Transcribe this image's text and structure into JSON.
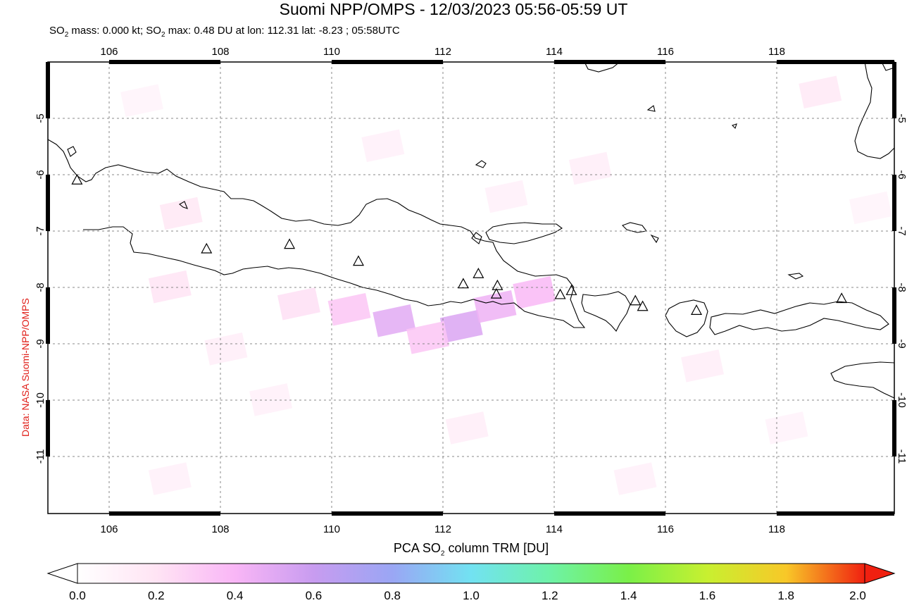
{
  "title": "Suomi NPP/OMPS - 12/03/2023 05:56-05:59 UT",
  "subtitle": {
    "prefix": "SO",
    "sub": "2",
    "mid": " mass: 0.000 kt; SO",
    "sub2": "2",
    "rest": " max: 0.48 DU at lon: 112.31 lat: -8.23 ; 05:58UTC"
  },
  "credit": "Data: NASA Suomi-NPP/OMPS",
  "map": {
    "lon_range": [
      104.9,
      120.0
    ],
    "lat_range": [
      -12.0,
      -4.0
    ],
    "x_ticks": [
      "106",
      "108",
      "110",
      "112",
      "114",
      "116",
      "118"
    ],
    "y_ticks": [
      "-5",
      "-6",
      "-7",
      "-8",
      "-9",
      "-10",
      "-11"
    ],
    "volcanoes": [
      [
        105.42,
        -6.1
      ],
      [
        107.73,
        -7.32
      ],
      [
        109.21,
        -7.24
      ],
      [
        110.44,
        -7.54
      ],
      [
        112.31,
        -7.94
      ],
      [
        112.58,
        -7.76
      ],
      [
        112.92,
        -7.97
      ],
      [
        112.9,
        -8.12
      ],
      [
        114.04,
        -8.13
      ],
      [
        114.24,
        -8.06
      ],
      [
        115.38,
        -8.24
      ],
      [
        115.51,
        -8.34
      ],
      [
        116.47,
        -8.41
      ],
      [
        119.06,
        -8.2
      ]
    ],
    "so2_cells": [
      {
        "lon": 111.0,
        "lat": -8.6,
        "du": 0.45
      },
      {
        "lon": 112.2,
        "lat": -8.7,
        "du": 0.48
      },
      {
        "lon": 112.8,
        "lat": -8.35,
        "du": 0.4
      },
      {
        "lon": 113.5,
        "lat": -8.1,
        "du": 0.35
      },
      {
        "lon": 110.2,
        "lat": -8.4,
        "du": 0.3
      },
      {
        "lon": 109.3,
        "lat": -8.3,
        "du": 0.2
      },
      {
        "lon": 107.0,
        "lat": -8.0,
        "du": 0.18
      },
      {
        "lon": 107.2,
        "lat": -6.7,
        "du": 0.16
      },
      {
        "lon": 111.6,
        "lat": -8.9,
        "du": 0.3
      },
      {
        "lon": 108.0,
        "lat": -9.1,
        "du": 0.12
      },
      {
        "lon": 118.6,
        "lat": -4.55,
        "du": 0.15
      },
      {
        "lon": 116.5,
        "lat": -9.4,
        "du": 0.12
      },
      {
        "lon": 112.3,
        "lat": -10.5,
        "du": 0.12
      },
      {
        "lon": 108.8,
        "lat": -10.0,
        "du": 0.1
      },
      {
        "lon": 114.5,
        "lat": -5.9,
        "du": 0.12
      },
      {
        "lon": 113.0,
        "lat": -6.4,
        "du": 0.1
      },
      {
        "lon": 110.8,
        "lat": -5.5,
        "du": 0.1
      },
      {
        "lon": 106.5,
        "lat": -4.7,
        "du": 0.08
      },
      {
        "lon": 119.5,
        "lat": -6.6,
        "du": 0.08
      },
      {
        "lon": 115.3,
        "lat": -11.4,
        "du": 0.1
      },
      {
        "lon": 107.0,
        "lat": -11.4,
        "du": 0.1
      },
      {
        "lon": 118.0,
        "lat": -10.5,
        "du": 0.09
      }
    ]
  },
  "colorbar": {
    "title_prefix": "PCA SO",
    "title_sub": "2",
    "title_rest": " column TRM [DU]",
    "labels": [
      "0.0",
      "0.2",
      "0.4",
      "0.6",
      "0.8",
      "1.0",
      "1.2",
      "1.4",
      "1.6",
      "1.8",
      "2.0"
    ],
    "colors": [
      "#ffffff",
      "#ffe4f4",
      "#f9b6f6",
      "#c89cf0",
      "#9aa6f4",
      "#72e2f2",
      "#6ef2a8",
      "#7af048",
      "#c8f030",
      "#f8c828",
      "#f86020",
      "#f02010"
    ]
  }
}
